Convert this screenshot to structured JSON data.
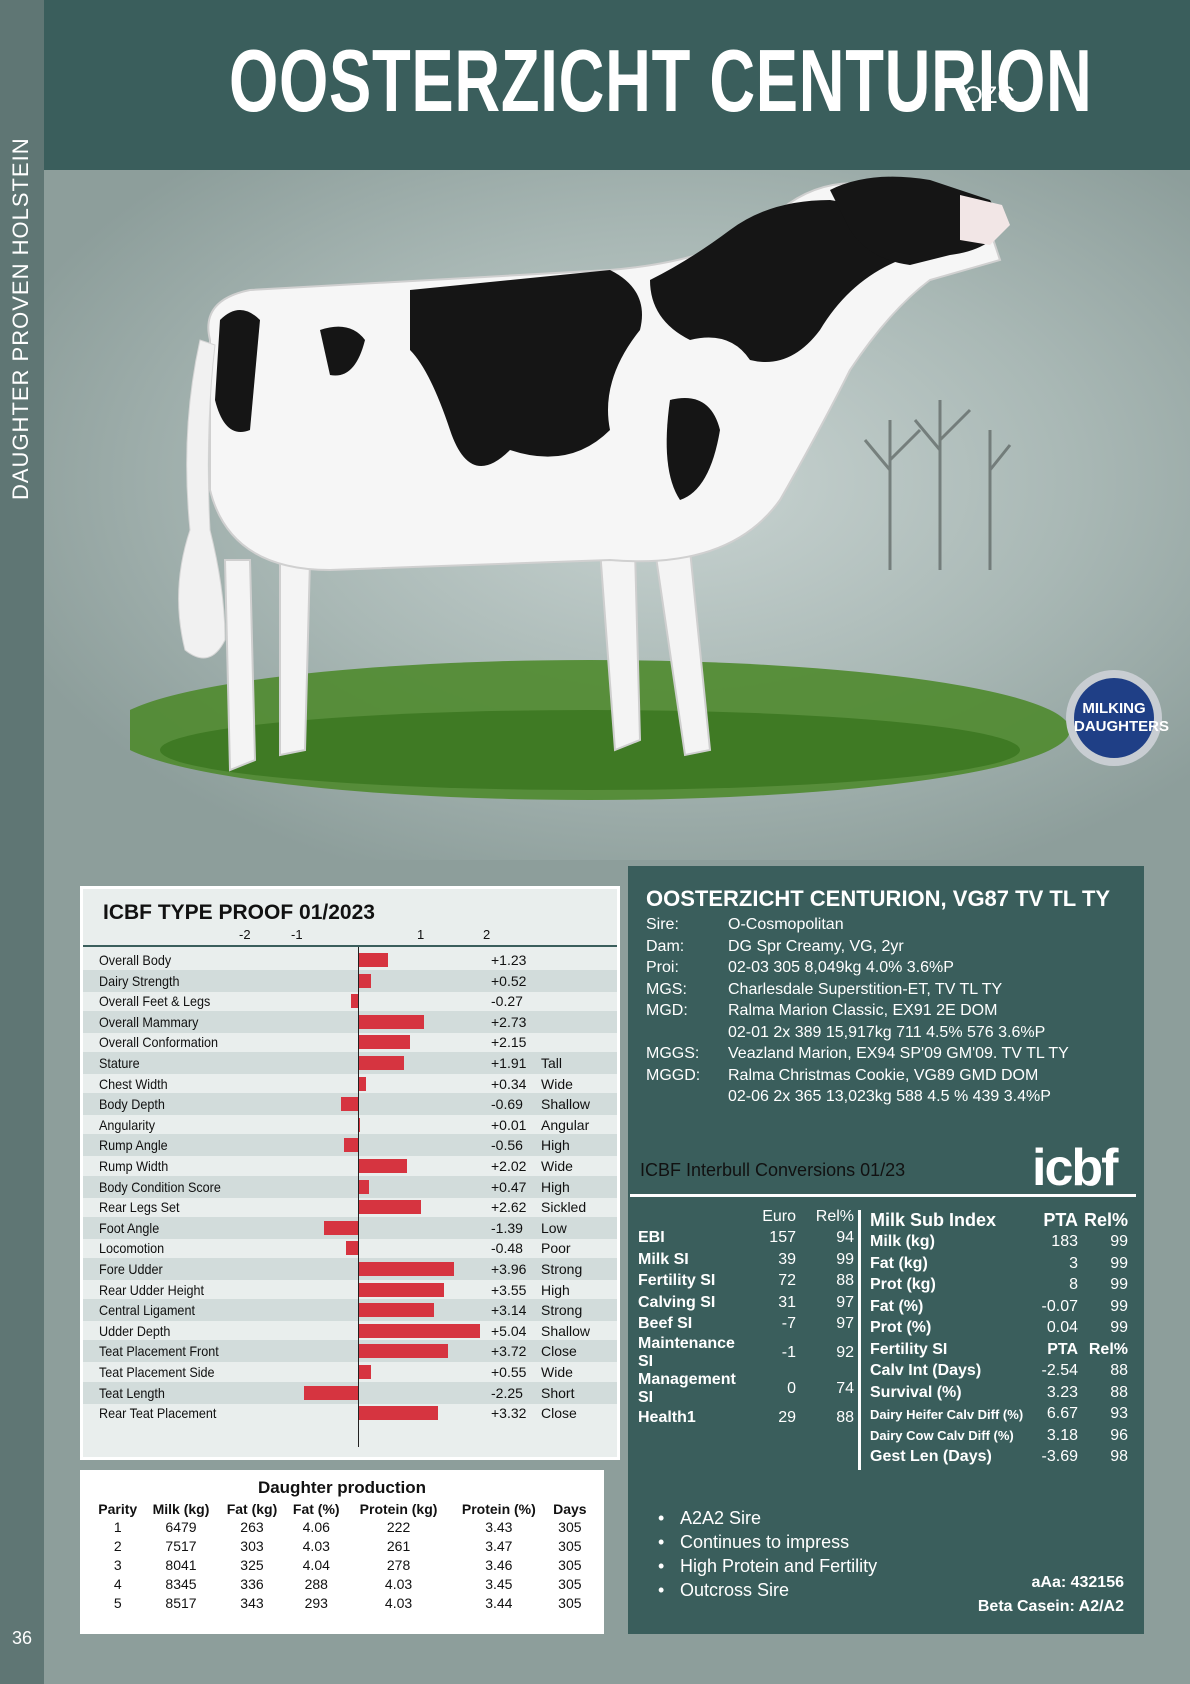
{
  "sidebar": {
    "label": "DAUGHTER PROVEN HOLSTEIN",
    "page_number": "36"
  },
  "header": {
    "title": "OOSTERZICHT CENTURION",
    "code": "OZC"
  },
  "badge": {
    "line1": "MILKING",
    "line2": "DAUGHTERS",
    "color": "#1f3f86"
  },
  "type_proof": {
    "title": "ICBF TYPE PROOF 01/2023",
    "scale_ticks": [
      "-2",
      "-1",
      "1",
      "2"
    ],
    "bar_color": "#d63440",
    "traits": [
      {
        "name": "Overall Body",
        "value": 1.23,
        "label": "+1.23",
        "desc": ""
      },
      {
        "name": "Dairy Strength",
        "value": 0.52,
        "label": "+0.52",
        "desc": ""
      },
      {
        "name": "Overall Feet & Legs",
        "value": -0.27,
        "label": "-0.27",
        "desc": ""
      },
      {
        "name": "Overall Mammary",
        "value": 2.73,
        "label": "+2.73",
        "desc": ""
      },
      {
        "name": "Overall Conformation",
        "value": 2.15,
        "label": "+2.15",
        "desc": ""
      },
      {
        "name": "Stature",
        "value": 1.91,
        "label": "+1.91",
        "desc": "Tall"
      },
      {
        "name": "Chest Width",
        "value": 0.34,
        "label": "+0.34",
        "desc": "Wide"
      },
      {
        "name": "Body Depth",
        "value": -0.69,
        "label": "-0.69",
        "desc": "Shallow"
      },
      {
        "name": "Angularity",
        "value": 0.01,
        "label": "+0.01",
        "desc": "Angular"
      },
      {
        "name": "Rump Angle",
        "value": -0.56,
        "label": "-0.56",
        "desc": "High"
      },
      {
        "name": "Rump Width",
        "value": 2.02,
        "label": "+2.02",
        "desc": "Wide"
      },
      {
        "name": "Body Condition Score",
        "value": 0.47,
        "label": "+0.47",
        "desc": "High"
      },
      {
        "name": "Rear Legs Set",
        "value": 2.62,
        "label": "+2.62",
        "desc": "Sickled"
      },
      {
        "name": "Foot Angle",
        "value": -1.39,
        "label": "-1.39",
        "desc": "Low"
      },
      {
        "name": "Locomotion",
        "value": -0.48,
        "label": "-0.48",
        "desc": "Poor"
      },
      {
        "name": "Fore Udder",
        "value": 3.96,
        "label": "+3.96",
        "desc": "Strong"
      },
      {
        "name": "Rear Udder Height",
        "value": 3.55,
        "label": "+3.55",
        "desc": "High"
      },
      {
        "name": "Central Ligament",
        "value": 3.14,
        "label": "+3.14",
        "desc": "Strong"
      },
      {
        "name": "Udder Depth",
        "value": 5.04,
        "label": "+5.04",
        "desc": "Shallow"
      },
      {
        "name": "Teat Placement Front",
        "value": 3.72,
        "label": "+3.72",
        "desc": "Close"
      },
      {
        "name": "Teat Placement Side",
        "value": 0.55,
        "label": "+0.55",
        "desc": "Wide"
      },
      {
        "name": "Teat Length",
        "value": -2.25,
        "label": "-2.25",
        "desc": "Short"
      },
      {
        "name": "Rear Teat Placement",
        "value": 3.32,
        "label": "+3.32",
        "desc": "Close"
      }
    ]
  },
  "daughter_production": {
    "title": "Daughter production",
    "columns": [
      "Parity",
      "Milk (kg)",
      "Fat (kg)",
      "Fat (%)",
      "Protein (kg)",
      "Protein (%)",
      "Days"
    ],
    "rows": [
      [
        "1",
        "6479",
        "263",
        "4.06",
        "222",
        "3.43",
        "305"
      ],
      [
        "2",
        "7517",
        "303",
        "4.03",
        "261",
        "3.47",
        "305"
      ],
      [
        "3",
        "8041",
        "325",
        "4.04",
        "278",
        "3.46",
        "305"
      ],
      [
        "4",
        "8345",
        "336",
        "288",
        "4.03",
        "3.45",
        "305"
      ],
      [
        "5",
        "8517",
        "343",
        "293",
        "4.03",
        "3.44",
        "305"
      ]
    ]
  },
  "pedigree": {
    "title": "OOSTERZICHT CENTURION, VG87 TV TL TY",
    "rows": [
      {
        "key": "Sire:",
        "value": "O-Cosmopolitan"
      },
      {
        "key": "Dam:",
        "value": "DG Spr Creamy, VG, 2yr"
      },
      {
        "key": "Proi:",
        "value": "02-03  305  8,049kg  4.0%  3.6%P"
      },
      {
        "key": "MGS:",
        "value": "Charlesdale Superstition-ET, TV TL TY"
      },
      {
        "key": "MGD:",
        "value": "Ralma Marion Classic, EX91 2E DOM"
      },
      {
        "key": "",
        "value": "02-01  2x  389  15,917kg  711  4.5%  576  3.6%P"
      },
      {
        "key": "MGGS:",
        "value": "Veazland Marion, EX94 SP'09 GM'09. TV TL TY"
      },
      {
        "key": "MGGD:",
        "value": "Ralma Christmas Cookie, VG89 GMD DOM"
      },
      {
        "key": "",
        "value": "02-06  2x  365  13,023kg  588 4.5 %  439  3.4%P"
      }
    ]
  },
  "interbull": {
    "title": "ICBF Interbull Conversions 01/23",
    "logo": "icbf",
    "headers": {
      "euro": "Euro",
      "rel": "Rel%"
    },
    "rows": [
      {
        "label": "EBI",
        "euro": "157",
        "rel": "94"
      },
      {
        "label": "Milk SI",
        "euro": "39",
        "rel": "99"
      },
      {
        "label": "Fertility SI",
        "euro": "72",
        "rel": "88"
      },
      {
        "label": "Calving SI",
        "euro": "31",
        "rel": "97"
      },
      {
        "label": "Beef SI",
        "euro": "-7",
        "rel": "97"
      },
      {
        "label": "Maintenance SI",
        "euro": "-1",
        "rel": "92"
      },
      {
        "label": "Management SI",
        "euro": "0",
        "rel": "74"
      },
      {
        "label": "Health1",
        "euro": "29",
        "rel": "88"
      }
    ]
  },
  "sub_index": {
    "milk_header": {
      "label": "Milk Sub Index",
      "pta": "PTA",
      "rel": "Rel%"
    },
    "milk_rows": [
      {
        "label": "Milk (kg)",
        "pta": "183",
        "rel": "99"
      },
      {
        "label": "Fat (kg)",
        "pta": "3",
        "rel": "99"
      },
      {
        "label": "Prot (kg)",
        "pta": "8",
        "rel": "99"
      },
      {
        "label": "Fat (%)",
        "pta": "-0.07",
        "rel": "99"
      },
      {
        "label": "Prot (%)",
        "pta": "0.04",
        "rel": "99"
      }
    ],
    "fert_header": {
      "label": "Fertility SI",
      "pta": "PTA",
      "rel": "Rel%"
    },
    "fert_rows": [
      {
        "label": "Calv Int (Days)",
        "pta": "-2.54",
        "rel": "88"
      },
      {
        "label": "Survival (%)",
        "pta": "3.23",
        "rel": "88"
      },
      {
        "label": "Dairy Heifer Calv Diff (%)",
        "pta": "6.67",
        "rel": "93"
      },
      {
        "label": "Dairy Cow Calv Diff (%)",
        "pta": "3.18",
        "rel": "96"
      },
      {
        "label": "Gest Len (Days)",
        "pta": "-3.69",
        "rel": "98"
      }
    ]
  },
  "bullets": [
    "A2A2 Sire",
    "Continues to impress",
    "High Protein and Fertility",
    "Outcross Sire"
  ],
  "genetics": {
    "aaa": "aAa: 432156",
    "beta": "Beta Casein: A2/A2"
  }
}
